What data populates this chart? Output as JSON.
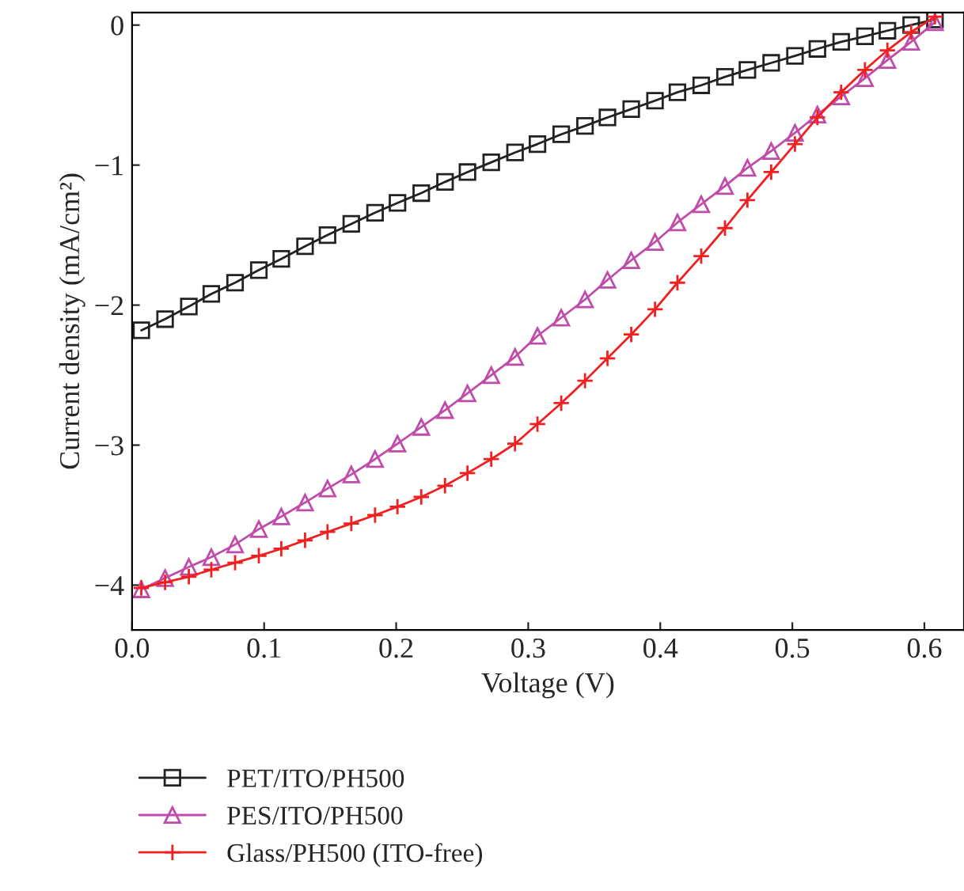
{
  "chart_data": {
    "type": "line",
    "xlabel": "Voltage (V)",
    "ylabel": "Current density (mA/cm²)",
    "xlim": [
      0,
      0.63
    ],
    "ylim": [
      -4.32,
      0.09
    ],
    "xticks": [
      {
        "value": 0,
        "label": "0.0"
      },
      {
        "value": 0.1,
        "label": "0.1"
      },
      {
        "value": 0.2,
        "label": "0.2"
      },
      {
        "value": 0.3,
        "label": "0.3"
      },
      {
        "value": 0.4,
        "label": "0.4"
      },
      {
        "value": 0.5,
        "label": "0.5"
      },
      {
        "value": 0.6,
        "label": "0.6"
      }
    ],
    "yticks": [
      {
        "value": -4,
        "label": "−4"
      },
      {
        "value": -3,
        "label": "−3"
      },
      {
        "value": -2,
        "label": "−2"
      },
      {
        "value": -1,
        "label": "−1"
      },
      0
    ],
    "x": [
      0.007,
      0.025,
      0.043,
      0.06,
      0.078,
      0.096,
      0.113,
      0.131,
      0.148,
      0.166,
      0.184,
      0.201,
      0.219,
      0.237,
      0.254,
      0.272,
      0.29,
      0.307,
      0.325,
      0.343,
      0.36,
      0.378,
      0.396,
      0.413,
      0.431,
      0.449,
      0.466,
      0.484,
      0.502,
      0.519,
      0.537,
      0.555,
      0.572,
      0.59,
      0.608
    ],
    "legend": "bottom",
    "grid": false,
    "series": [
      {
        "name": "PET/ITO/PH500",
        "color": "#222222",
        "marker": "square",
        "values": [
          -2.18,
          -2.1,
          -2.01,
          -1.92,
          -1.84,
          -1.75,
          -1.67,
          -1.58,
          -1.5,
          -1.42,
          -1.34,
          -1.27,
          -1.2,
          -1.12,
          -1.05,
          -0.98,
          -0.91,
          -0.85,
          -0.78,
          -0.72,
          -0.66,
          -0.6,
          -0.54,
          -0.48,
          -0.43,
          -0.37,
          -0.32,
          -0.27,
          -0.22,
          -0.17,
          -0.12,
          -0.08,
          -0.04,
          0.0,
          0.04
        ]
      },
      {
        "name": "PES/ITO/PH500",
        "color": "#c04caa",
        "marker": "triangle",
        "values": [
          -4.03,
          -3.95,
          -3.87,
          -3.8,
          -3.71,
          -3.6,
          -3.51,
          -3.41,
          -3.31,
          -3.21,
          -3.1,
          -2.99,
          -2.87,
          -2.75,
          -2.63,
          -2.5,
          -2.37,
          -2.22,
          -2.09,
          -1.96,
          -1.82,
          -1.68,
          -1.55,
          -1.41,
          -1.28,
          -1.15,
          -1.02,
          -0.9,
          -0.77,
          -0.64,
          -0.51,
          -0.38,
          -0.25,
          -0.12,
          0.02
        ]
      },
      {
        "name": "Glass/PH500 (ITO-free)",
        "color": "#f02020",
        "marker": "cross",
        "values": [
          -4.02,
          -3.98,
          -3.94,
          -3.89,
          -3.84,
          -3.79,
          -3.74,
          -3.68,
          -3.62,
          -3.56,
          -3.5,
          -3.44,
          -3.37,
          -3.29,
          -3.2,
          -3.1,
          -2.99,
          -2.85,
          -2.7,
          -2.54,
          -2.38,
          -2.21,
          -2.03,
          -1.84,
          -1.65,
          -1.45,
          -1.25,
          -1.05,
          -0.85,
          -0.66,
          -0.48,
          -0.32,
          -0.18,
          -0.05,
          0.06
        ]
      }
    ]
  }
}
